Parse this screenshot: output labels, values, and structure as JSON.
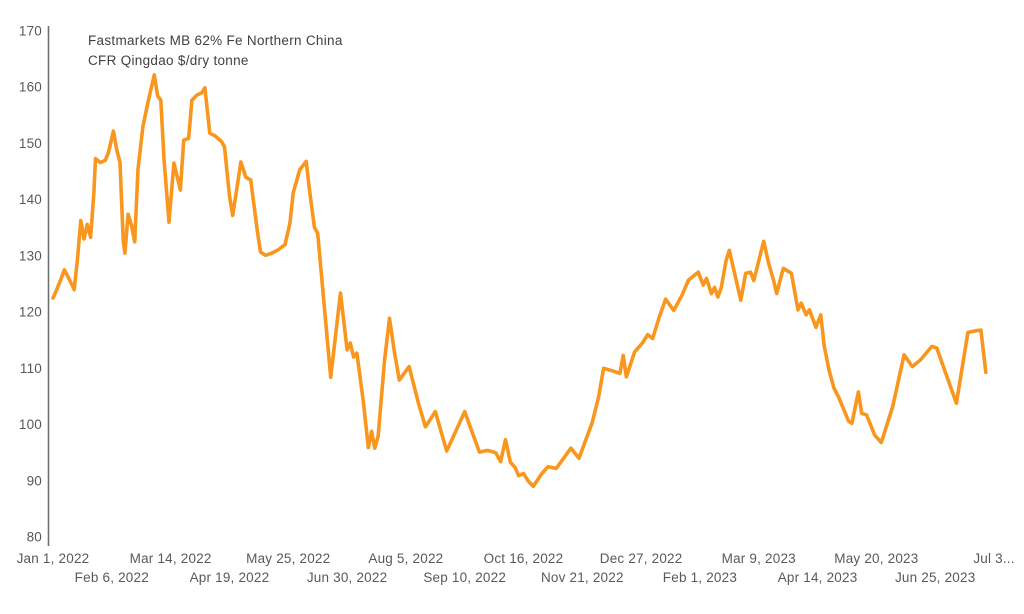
{
  "header": {
    "title_line1": "Fastmarkets MB 62% Fe Northern China",
    "title_line2": "CFR Qingdao $/dry tonne"
  },
  "colors": {
    "line": "#F8961E",
    "tick_text": "#58595B",
    "title_text": "#414042",
    "axis_line": "#6D6E71",
    "background": "#FFFFFF"
  },
  "chart_data": {
    "type": "line",
    "title": "Fastmarkets MB 62% Fe Northern China CFR Qingdao $/dry tonne",
    "ylabel": "$/dry tonne",
    "ylim": [
      80,
      170
    ],
    "y_ticks": [
      170,
      160,
      150,
      140,
      130,
      120,
      110,
      100,
      90,
      80
    ],
    "grid": false,
    "legend_position": "none",
    "x_axis_unit": "days since Jan 1, 2022",
    "x_axis_span_days": 576,
    "x_ticks": [
      {
        "label": "Jan 1, 2022",
        "day": 0,
        "row": 1
      },
      {
        "label": "Feb 6, 2022",
        "day": 36,
        "row": 2
      },
      {
        "label": "Mar 14, 2022",
        "day": 72,
        "row": 1
      },
      {
        "label": "Apr 19, 2022",
        "day": 108,
        "row": 2
      },
      {
        "label": "May 25, 2022",
        "day": 144,
        "row": 1
      },
      {
        "label": "Jun 30, 2022",
        "day": 180,
        "row": 2
      },
      {
        "label": "Aug 5, 2022",
        "day": 216,
        "row": 1
      },
      {
        "label": "Sep 10, 2022",
        "day": 252,
        "row": 2
      },
      {
        "label": "Oct 16, 2022",
        "day": 288,
        "row": 1
      },
      {
        "label": "Nov 21, 2022",
        "day": 324,
        "row": 2
      },
      {
        "label": "Dec 27, 2022",
        "day": 360,
        "row": 1
      },
      {
        "label": "Feb 1, 2023",
        "day": 396,
        "row": 2
      },
      {
        "label": "Mar 9, 2023",
        "day": 432,
        "row": 1
      },
      {
        "label": "Apr 14, 2023",
        "day": 468,
        "row": 2
      },
      {
        "label": "May 20, 2023",
        "day": 504,
        "row": 1
      },
      {
        "label": "Jun 25, 2023",
        "day": 540,
        "row": 2
      },
      {
        "label": "Jul 3...",
        "day": 576,
        "row": 1
      }
    ],
    "series": [
      {
        "name": "Fastmarkets MB 62% Fe Northern China CFR Qingdao $/dry tonne",
        "points": [
          [
            0,
            122.5
          ],
          [
            2,
            123.8
          ],
          [
            5,
            126.0
          ],
          [
            7,
            127.5
          ],
          [
            9,
            126.4
          ],
          [
            11,
            125.2
          ],
          [
            13,
            124.0
          ],
          [
            15,
            129.5
          ],
          [
            17,
            136.3
          ],
          [
            19,
            133.0
          ],
          [
            21,
            135.6
          ],
          [
            23,
            133.3
          ],
          [
            25,
            141.0
          ],
          [
            26,
            147.3
          ],
          [
            29,
            146.6
          ],
          [
            32,
            147.0
          ],
          [
            34,
            148.4
          ],
          [
            37,
            152.2
          ],
          [
            39,
            148.9
          ],
          [
            41,
            146.6
          ],
          [
            43,
            132.8
          ],
          [
            44,
            130.5
          ],
          [
            46,
            137.4
          ],
          [
            48,
            135.5
          ],
          [
            50,
            132.5
          ],
          [
            52,
            145.4
          ],
          [
            55,
            153.0
          ],
          [
            58,
            157.2
          ],
          [
            62,
            162.2
          ],
          [
            64,
            158.5
          ],
          [
            66,
            157.7
          ],
          [
            68,
            147.0
          ],
          [
            71,
            136.0
          ],
          [
            74,
            146.5
          ],
          [
            78,
            141.7
          ],
          [
            80,
            150.6
          ],
          [
            83,
            150.9
          ],
          [
            85,
            157.7
          ],
          [
            88,
            158.6
          ],
          [
            91,
            159.0
          ],
          [
            93,
            159.9
          ],
          [
            96,
            151.8
          ],
          [
            99,
            151.4
          ],
          [
            103,
            150.4
          ],
          [
            105,
            149.4
          ],
          [
            108,
            140.8
          ],
          [
            110,
            137.2
          ],
          [
            115,
            146.7
          ],
          [
            118,
            144.0
          ],
          [
            121,
            143.5
          ],
          [
            125,
            134.6
          ],
          [
            127,
            130.7
          ],
          [
            130,
            130.1
          ],
          [
            134,
            130.5
          ],
          [
            138,
            131.1
          ],
          [
            142,
            132.0
          ],
          [
            145,
            135.8
          ],
          [
            147,
            141.2
          ],
          [
            151,
            145.3
          ],
          [
            155,
            146.8
          ],
          [
            157,
            141.7
          ],
          [
            160,
            135.1
          ],
          [
            162,
            134.0
          ],
          [
            170,
            108.4
          ],
          [
            176,
            123.4
          ],
          [
            180,
            113.3
          ],
          [
            182,
            114.5
          ],
          [
            184,
            112.0
          ],
          [
            186,
            112.7
          ],
          [
            190,
            104.0
          ],
          [
            193,
            95.9
          ],
          [
            195,
            98.8
          ],
          [
            197,
            95.8
          ],
          [
            199,
            97.9
          ],
          [
            203,
            111.5
          ],
          [
            206,
            118.9
          ],
          [
            209,
            112.9
          ],
          [
            212,
            107.9
          ],
          [
            218,
            110.3
          ],
          [
            224,
            103.5
          ],
          [
            228,
            99.6
          ],
          [
            234,
            102.3
          ],
          [
            241,
            95.3
          ],
          [
            252,
            102.3
          ],
          [
            261,
            95.1
          ],
          [
            266,
            95.4
          ],
          [
            271,
            95.0
          ],
          [
            274,
            93.4
          ],
          [
            277,
            97.3
          ],
          [
            280,
            93.3
          ],
          [
            283,
            92.3
          ],
          [
            285,
            90.9
          ],
          [
            288,
            91.3
          ],
          [
            291,
            89.9
          ],
          [
            294,
            89.0
          ],
          [
            299,
            91.2
          ],
          [
            303,
            92.5
          ],
          [
            308,
            92.2
          ],
          [
            317,
            95.8
          ],
          [
            322,
            94.0
          ],
          [
            330,
            100.3
          ],
          [
            334,
            104.9
          ],
          [
            337,
            110.0
          ],
          [
            342,
            109.6
          ],
          [
            347,
            109.1
          ],
          [
            349,
            112.3
          ],
          [
            351,
            108.5
          ],
          [
            356,
            112.9
          ],
          [
            361,
            114.6
          ],
          [
            364,
            116.0
          ],
          [
            367,
            115.3
          ],
          [
            371,
            119.0
          ],
          [
            375,
            122.3
          ],
          [
            380,
            120.3
          ],
          [
            385,
            123.0
          ],
          [
            389,
            125.7
          ],
          [
            395,
            127.1
          ],
          [
            398,
            124.8
          ],
          [
            400,
            126.0
          ],
          [
            403,
            123.3
          ],
          [
            405,
            124.4
          ],
          [
            407,
            122.7
          ],
          [
            409,
            124.3
          ],
          [
            412,
            129.2
          ],
          [
            414,
            131.0
          ],
          [
            421,
            122.1
          ],
          [
            424,
            126.9
          ],
          [
            427,
            127.1
          ],
          [
            429,
            125.6
          ],
          [
            435,
            132.6
          ],
          [
            438,
            128.7
          ],
          [
            441,
            125.7
          ],
          [
            443,
            123.3
          ],
          [
            447,
            127.8
          ],
          [
            452,
            126.9
          ],
          [
            456,
            120.4
          ],
          [
            458,
            121.6
          ],
          [
            461,
            119.5
          ],
          [
            463,
            120.4
          ],
          [
            467,
            117.3
          ],
          [
            470,
            119.5
          ],
          [
            472,
            114.1
          ],
          [
            475,
            109.7
          ],
          [
            478,
            106.5
          ],
          [
            481,
            104.8
          ],
          [
            487,
            100.6
          ],
          [
            489,
            100.2
          ],
          [
            493,
            105.8
          ],
          [
            495,
            102.0
          ],
          [
            498,
            101.7
          ],
          [
            503,
            98.1
          ],
          [
            507,
            96.8
          ],
          [
            514,
            103.2
          ],
          [
            521,
            112.4
          ],
          [
            526,
            110.3
          ],
          [
            531,
            111.5
          ],
          [
            538,
            113.9
          ],
          [
            541,
            113.6
          ],
          [
            553,
            103.8
          ],
          [
            560,
            116.4
          ],
          [
            565,
            116.7
          ],
          [
            568,
            116.8
          ],
          [
            571,
            109.3
          ]
        ]
      }
    ]
  }
}
